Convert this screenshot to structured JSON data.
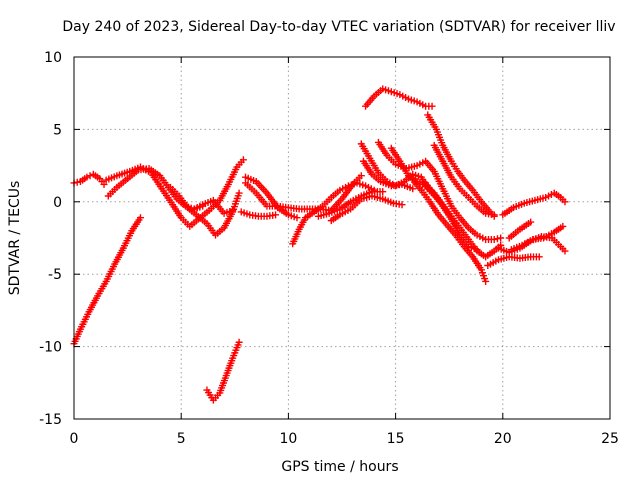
{
  "chart_data": {
    "type": "scatter",
    "title": "Day 240 of 2023, Sidereal Day-to-day VTEC variation (SDTVAR) for receiver lliv",
    "xlabel": "GPS time / hours",
    "ylabel": "SDTVAR / TECUs",
    "xlim": [
      0,
      25
    ],
    "ylim": [
      -15,
      10
    ],
    "xticks": [
      0,
      5,
      10,
      15,
      20,
      25
    ],
    "xtick_labels": [
      "0",
      "5",
      "10",
      "15",
      "20",
      "25"
    ],
    "yticks": [
      -15,
      -10,
      -5,
      0,
      5,
      10
    ],
    "ytick_labels": [
      "-15",
      "-10",
      "-5",
      "0",
      "5",
      "10"
    ],
    "grid": true,
    "marker": "+",
    "series_color": "#ff0000",
    "series": [
      {
        "name": "s1",
        "points": [
          [
            0.0,
            1.3
          ],
          [
            0.3,
            1.4
          ],
          [
            0.6,
            1.7
          ],
          [
            0.9,
            1.9
          ],
          [
            1.2,
            1.6
          ],
          [
            1.4,
            1.2
          ]
        ]
      },
      {
        "name": "s2",
        "points": [
          [
            0.0,
            -9.8
          ],
          [
            0.3,
            -8.8
          ],
          [
            0.7,
            -7.6
          ],
          [
            1.1,
            -6.5
          ],
          [
            1.5,
            -5.5
          ],
          [
            1.9,
            -4.3
          ],
          [
            2.3,
            -3.2
          ],
          [
            2.7,
            -2.0
          ],
          [
            3.1,
            -1.1
          ]
        ]
      },
      {
        "name": "s3",
        "points": [
          [
            1.6,
            0.4
          ],
          [
            2.0,
            1.0
          ],
          [
            2.5,
            1.6
          ],
          [
            3.0,
            2.2
          ],
          [
            3.5,
            2.3
          ],
          [
            4.0,
            1.8
          ],
          [
            4.4,
            1.0
          ],
          [
            4.8,
            0.2
          ],
          [
            5.2,
            -0.3
          ],
          [
            5.6,
            -0.5
          ],
          [
            6.0,
            -0.3
          ]
        ]
      },
      {
        "name": "s4",
        "points": [
          [
            1.5,
            1.5
          ],
          [
            2.0,
            1.8
          ],
          [
            2.6,
            2.1
          ],
          [
            3.1,
            2.4
          ],
          [
            3.6,
            2.0
          ],
          [
            4.1,
            0.9
          ],
          [
            4.6,
            -0.2
          ],
          [
            5.0,
            -1.1
          ],
          [
            5.4,
            -1.7
          ],
          [
            5.8,
            -1.2
          ],
          [
            6.3,
            -0.6
          ],
          [
            6.8,
            0.1
          ],
          [
            7.2,
            1.2
          ],
          [
            7.6,
            2.4
          ],
          [
            7.9,
            2.9
          ]
        ]
      },
      {
        "name": "s5",
        "points": [
          [
            4.5,
            1.0
          ],
          [
            4.9,
            0.4
          ],
          [
            5.3,
            -0.4
          ],
          [
            5.7,
            -0.9
          ],
          [
            6.2,
            -1.5
          ],
          [
            6.6,
            -2.3
          ],
          [
            7.0,
            -1.8
          ],
          [
            7.4,
            -0.7
          ],
          [
            7.7,
            0.6
          ]
        ]
      },
      {
        "name": "s6",
        "points": [
          [
            7.8,
            -0.7
          ],
          [
            8.2,
            -0.9
          ],
          [
            8.6,
            -1.0
          ],
          [
            9.0,
            -1.0
          ],
          [
            9.4,
            -0.9
          ]
        ]
      },
      {
        "name": "s7",
        "points": [
          [
            5.5,
            -0.6
          ],
          [
            6.0,
            -0.2
          ],
          [
            6.5,
            0.1
          ],
          [
            7.0,
            -0.8
          ],
          [
            7.4,
            -0.6
          ]
        ]
      },
      {
        "name": "s8",
        "points": [
          [
            6.2,
            -13.0
          ],
          [
            6.5,
            -13.7
          ],
          [
            6.8,
            -13.2
          ],
          [
            7.1,
            -12.0
          ],
          [
            7.4,
            -10.8
          ],
          [
            7.7,
            -9.7
          ]
        ]
      },
      {
        "name": "s9",
        "points": [
          [
            8.0,
            1.3
          ],
          [
            8.5,
            0.6
          ],
          [
            9.0,
            -0.3
          ],
          [
            9.5,
            -0.3
          ],
          [
            10.0,
            -0.4
          ],
          [
            10.5,
            -0.5
          ],
          [
            11.0,
            -0.5
          ],
          [
            11.5,
            -0.5
          ],
          [
            12.0,
            -0.6
          ],
          [
            12.5,
            0.2
          ],
          [
            13.0,
            1.2
          ],
          [
            13.4,
            1.8
          ]
        ]
      },
      {
        "name": "s10",
        "points": [
          [
            8.0,
            1.7
          ],
          [
            8.5,
            1.4
          ],
          [
            9.0,
            0.6
          ],
          [
            9.5,
            -0.4
          ],
          [
            10.0,
            -0.9
          ],
          [
            10.4,
            -1.1
          ]
        ]
      },
      {
        "name": "s11",
        "points": [
          [
            10.2,
            -2.9
          ],
          [
            10.5,
            -1.9
          ],
          [
            10.8,
            -1.1
          ],
          [
            11.2,
            -0.7
          ],
          [
            11.6,
            -0.3
          ],
          [
            12.0,
            0.3
          ],
          [
            12.4,
            0.8
          ],
          [
            12.8,
            1.1
          ],
          [
            13.2,
            1.3
          ],
          [
            13.6,
            1.1
          ],
          [
            14.0,
            0.8
          ]
        ]
      },
      {
        "name": "s12",
        "points": [
          [
            11.4,
            -1.0
          ],
          [
            11.9,
            -0.8
          ],
          [
            12.4,
            -0.5
          ],
          [
            12.9,
            0.0
          ],
          [
            13.4,
            0.4
          ],
          [
            13.9,
            0.7
          ],
          [
            14.4,
            0.7
          ]
        ]
      },
      {
        "name": "s13",
        "points": [
          [
            12.0,
            -1.3
          ],
          [
            12.4,
            -0.9
          ],
          [
            12.9,
            -0.5
          ],
          [
            13.4,
            0.2
          ],
          [
            13.9,
            0.4
          ],
          [
            14.4,
            0.2
          ],
          [
            14.9,
            -0.1
          ],
          [
            15.3,
            -0.2
          ]
        ]
      },
      {
        "name": "s14",
        "points": [
          [
            13.5,
            2.8
          ],
          [
            13.9,
            1.9
          ],
          [
            14.3,
            1.4
          ],
          [
            14.8,
            1.1
          ],
          [
            15.3,
            1.2
          ],
          [
            15.8,
            0.9
          ]
        ]
      },
      {
        "name": "s15",
        "points": [
          [
            13.4,
            4.0
          ],
          [
            13.8,
            3.0
          ],
          [
            14.2,
            2.0
          ],
          [
            14.6,
            1.4
          ],
          [
            15.0,
            1.1
          ],
          [
            15.4,
            1.4
          ],
          [
            15.8,
            1.9
          ],
          [
            16.2,
            1.7
          ],
          [
            16.5,
            0.9
          ],
          [
            16.9,
            0.3
          ]
        ]
      },
      {
        "name": "s16",
        "points": [
          [
            13.6,
            6.6
          ],
          [
            14.0,
            7.3
          ],
          [
            14.4,
            7.8
          ],
          [
            14.8,
            7.6
          ],
          [
            15.2,
            7.4
          ],
          [
            15.6,
            7.1
          ],
          [
            16.0,
            6.9
          ],
          [
            16.4,
            6.6
          ],
          [
            16.7,
            6.6
          ]
        ]
      },
      {
        "name": "s17",
        "points": [
          [
            14.2,
            4.1
          ],
          [
            14.6,
            3.2
          ],
          [
            15.0,
            2.6
          ],
          [
            15.5,
            2.3
          ],
          [
            16.0,
            2.5
          ],
          [
            16.4,
            2.8
          ],
          [
            16.8,
            2.1
          ],
          [
            17.2,
            0.9
          ],
          [
            17.6,
            -0.3
          ],
          [
            18.0,
            -1.1
          ],
          [
            18.4,
            -1.8
          ],
          [
            18.8,
            -2.3
          ],
          [
            19.2,
            -2.6
          ],
          [
            19.6,
            -2.6
          ],
          [
            19.9,
            -2.5
          ]
        ]
      },
      {
        "name": "s18",
        "points": [
          [
            14.8,
            3.7
          ],
          [
            15.2,
            2.8
          ],
          [
            15.6,
            1.8
          ],
          [
            16.0,
            1.4
          ],
          [
            16.4,
            1.1
          ],
          [
            16.8,
            0.6
          ],
          [
            17.2,
            -0.2
          ],
          [
            17.6,
            -1.0
          ],
          [
            18.0,
            -1.8
          ],
          [
            18.4,
            -2.6
          ],
          [
            18.8,
            -3.4
          ],
          [
            19.2,
            -3.8
          ],
          [
            19.6,
            -3.4
          ],
          [
            19.9,
            -3.0
          ]
        ]
      },
      {
        "name": "s19",
        "points": [
          [
            15.8,
            1.5
          ],
          [
            16.2,
            0.8
          ],
          [
            16.6,
            0.0
          ],
          [
            17.0,
            -0.9
          ],
          [
            17.4,
            -1.6
          ],
          [
            17.8,
            -2.3
          ],
          [
            18.2,
            -3.1
          ],
          [
            18.6,
            -3.8
          ],
          [
            19.0,
            -4.7
          ],
          [
            19.2,
            -5.5
          ]
        ]
      },
      {
        "name": "s20",
        "points": [
          [
            16.4,
            1.3
          ],
          [
            16.8,
            0.5
          ],
          [
            17.2,
            -0.3
          ],
          [
            17.6,
            -1.2
          ],
          [
            18.0,
            -2.3
          ],
          [
            18.4,
            -3.1
          ],
          [
            18.8,
            -3.3
          ]
        ]
      },
      {
        "name": "s21",
        "points": [
          [
            16.5,
            6.0
          ],
          [
            16.9,
            5.0
          ],
          [
            17.2,
            3.9
          ],
          [
            17.6,
            2.8
          ],
          [
            17.9,
            2.1
          ],
          [
            18.2,
            1.5
          ],
          [
            18.6,
            0.8
          ],
          [
            19.0,
            0.0
          ],
          [
            19.4,
            -0.7
          ],
          [
            19.6,
            -1.0
          ]
        ]
      },
      {
        "name": "s22",
        "points": [
          [
            16.8,
            3.9
          ],
          [
            17.2,
            2.8
          ],
          [
            17.6,
            1.7
          ],
          [
            18.0,
            0.9
          ],
          [
            18.4,
            0.3
          ],
          [
            18.8,
            -0.3
          ],
          [
            19.2,
            -0.8
          ],
          [
            19.6,
            -0.9
          ]
        ]
      },
      {
        "name": "s23",
        "points": [
          [
            19.3,
            -4.4
          ],
          [
            19.8,
            -4.0
          ],
          [
            20.3,
            -3.8
          ],
          [
            20.8,
            -3.9
          ],
          [
            21.3,
            -3.8
          ],
          [
            21.7,
            -3.8
          ]
        ]
      },
      {
        "name": "s24",
        "points": [
          [
            20.0,
            -0.9
          ],
          [
            20.5,
            -0.4
          ],
          [
            21.0,
            -0.1
          ],
          [
            21.5,
            0.1
          ],
          [
            22.0,
            0.3
          ],
          [
            22.4,
            0.6
          ],
          [
            22.7,
            0.3
          ],
          [
            22.9,
            0.0
          ]
        ]
      },
      {
        "name": "s25",
        "points": [
          [
            20.3,
            -2.5
          ],
          [
            20.8,
            -1.9
          ],
          [
            21.3,
            -1.4
          ]
        ]
      },
      {
        "name": "s26",
        "points": [
          [
            20.4,
            -3.3
          ],
          [
            20.9,
            -3.0
          ],
          [
            21.4,
            -2.6
          ],
          [
            21.9,
            -2.5
          ],
          [
            22.4,
            -2.1
          ],
          [
            22.8,
            -1.7
          ]
        ]
      },
      {
        "name": "s27",
        "points": [
          [
            19.8,
            -3.2
          ],
          [
            20.3,
            -3.5
          ],
          [
            20.8,
            -3.2
          ],
          [
            21.3,
            -2.7
          ],
          [
            21.8,
            -2.4
          ],
          [
            22.3,
            -2.5
          ],
          [
            22.7,
            -3.1
          ],
          [
            22.9,
            -3.4
          ]
        ]
      }
    ]
  }
}
